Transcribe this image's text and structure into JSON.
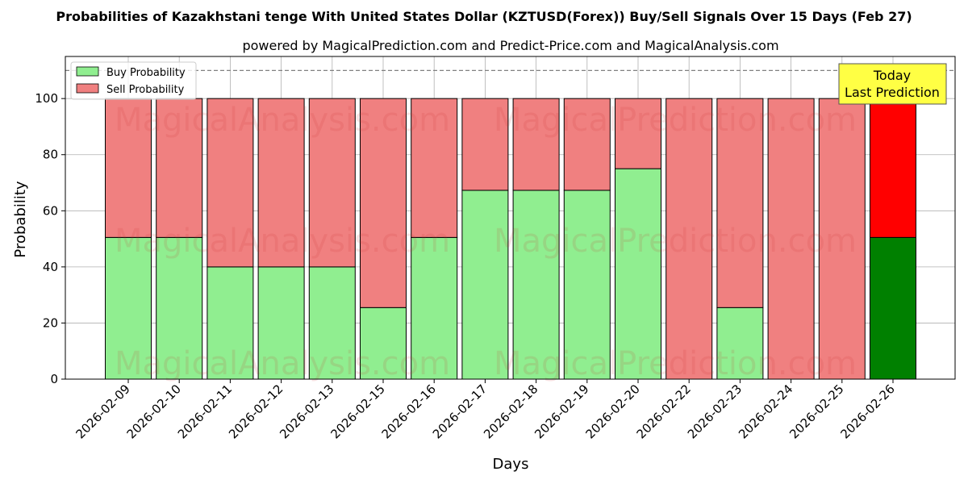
{
  "chart_data": {
    "type": "bar",
    "stacked": true,
    "title": "Probabilities of Kazakhstani tenge With United States Dollar (KZTUSD(Forex)) Buy/Sell Signals Over 15 Days (Feb 27)",
    "subtitle": "powered by MagicalPrediction.com and Predict-Price.com and MagicalAnalysis.com",
    "xlabel": "Days",
    "ylabel": "Probability",
    "ylim": [
      0,
      115
    ],
    "yticks": [
      0,
      20,
      40,
      60,
      80,
      100
    ],
    "reference_line": 110,
    "grid": true,
    "legend_position": "top-left",
    "categories": [
      "2026-02-09",
      "2026-02-10",
      "2026-02-11",
      "2026-02-12",
      "2026-02-13",
      "2026-02-15",
      "2026-02-16",
      "2026-02-17",
      "2026-02-18",
      "2026-02-19",
      "2026-02-20",
      "2026-02-22",
      "2026-02-23",
      "2026-02-24",
      "2026-02-25",
      "2026-02-26"
    ],
    "series": [
      {
        "name": "Buy Probability",
        "color": "#90ee90",
        "highlight_color": "#008000",
        "values": [
          50.5,
          50.5,
          40,
          40,
          40,
          25.5,
          50.5,
          67.3,
          67.3,
          67.3,
          75,
          0,
          25.5,
          0,
          0,
          50.5
        ]
      },
      {
        "name": "Sell Probability",
        "color": "#f08080",
        "highlight_color": "#ff0000",
        "values": [
          49.5,
          49.5,
          60,
          60,
          60,
          74.5,
          49.5,
          32.7,
          32.7,
          32.7,
          25,
          100,
          74.5,
          100,
          100,
          49.5
        ]
      }
    ],
    "highlight_index": 15,
    "annotation": {
      "line1": "Today",
      "line2": "Last Prediction",
      "color": "#ffff44"
    },
    "watermarks": [
      "MagicalAnalysis.com",
      "MagicalPrediction.com"
    ]
  }
}
